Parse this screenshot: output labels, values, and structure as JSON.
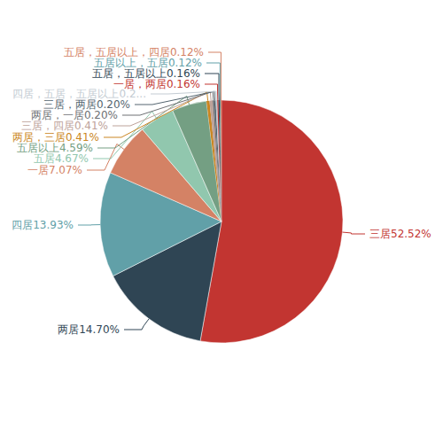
{
  "chart_data": {
    "type": "pie",
    "categories": [
      "三居",
      "两居",
      "四居",
      "一居",
      "五居",
      "五居以上",
      "两居，三居",
      "三居，四居",
      "两居，一居",
      "三居，两居",
      "四居，五居，五居以上",
      "一居，两居",
      "五居，五居以上",
      "五居以上，五居",
      "五居，五居以上，四居"
    ],
    "values": [
      52.52,
      14.7,
      13.93,
      7.07,
      4.67,
      4.59,
      0.41,
      0.41,
      0.2,
      0.2,
      0.2,
      0.16,
      0.16,
      0.12,
      0.12
    ],
    "value_labels": [
      "52.52%",
      "14.70%",
      "13.93%",
      "7.07%",
      "4.67%",
      "4.59%",
      "0.41%",
      "0.41%",
      "0.20%",
      "0.20%",
      "0.2...",
      "0.16%",
      "0.16%",
      "0.12%",
      "0.12%"
    ],
    "colors": [
      "#c23531",
      "#2f4554",
      "#61a0a8",
      "#d48265",
      "#91c7ae",
      "#749f83",
      "#ca8622",
      "#bda29a",
      "#6e7074",
      "#546570",
      "#c4ccd3",
      "#c23531",
      "#2f4554",
      "#61a0a8",
      "#d48265"
    ],
    "data_labels": true
  }
}
